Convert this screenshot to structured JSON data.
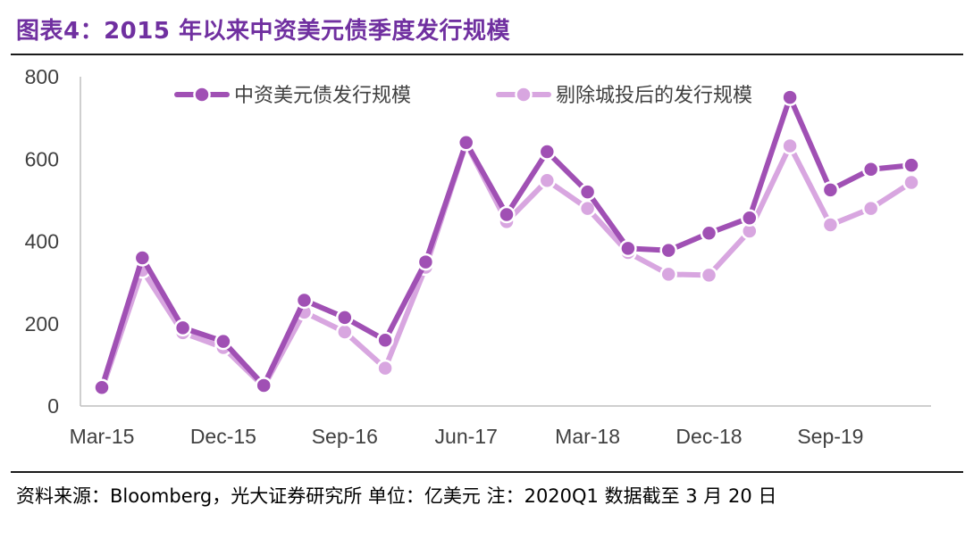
{
  "title": "图表4：2015 年以来中资美元债季度发行规模",
  "source_note": "资料来源：Bloomberg，光大证券研究所 单位：亿美元 注：2020Q1 数据截至 3 月 20 日",
  "colors": {
    "series_main": "#a050b4",
    "series_ex": "#d8a6e0",
    "title": "#7030a0",
    "axis": "#bfbfbf"
  },
  "chart_data": {
    "type": "line",
    "x": [
      "Mar-15",
      "Jun-15",
      "Sep-15",
      "Dec-15",
      "Mar-16",
      "Jun-16",
      "Sep-16",
      "Dec-16",
      "Mar-17",
      "Jun-17",
      "Sep-17",
      "Dec-17",
      "Mar-18",
      "Jun-18",
      "Sep-18",
      "Dec-18",
      "Mar-19",
      "Jun-19",
      "Sep-19",
      "Dec-19",
      "Mar-20"
    ],
    "x_tick_labels": [
      "Mar-15",
      "Dec-15",
      "Sep-16",
      "Jun-17",
      "Mar-18",
      "Dec-18",
      "Sep-19"
    ],
    "ylim": [
      0,
      800
    ],
    "y_ticks": [
      0,
      200,
      400,
      600,
      800
    ],
    "legend_position": "top",
    "grid": false,
    "series": [
      {
        "name": "中资美元债发行规模",
        "values": [
          45,
          360,
          190,
          157,
          50,
          257,
          215,
          160,
          350,
          640,
          465,
          618,
          520,
          383,
          378,
          420,
          457,
          750,
          525,
          575,
          585
        ]
      },
      {
        "name": "剔除城投后的发行规模",
        "values": [
          40,
          330,
          178,
          142,
          47,
          228,
          180,
          92,
          337,
          638,
          448,
          548,
          480,
          373,
          320,
          318,
          425,
          632,
          440,
          480,
          543
        ]
      }
    ]
  }
}
